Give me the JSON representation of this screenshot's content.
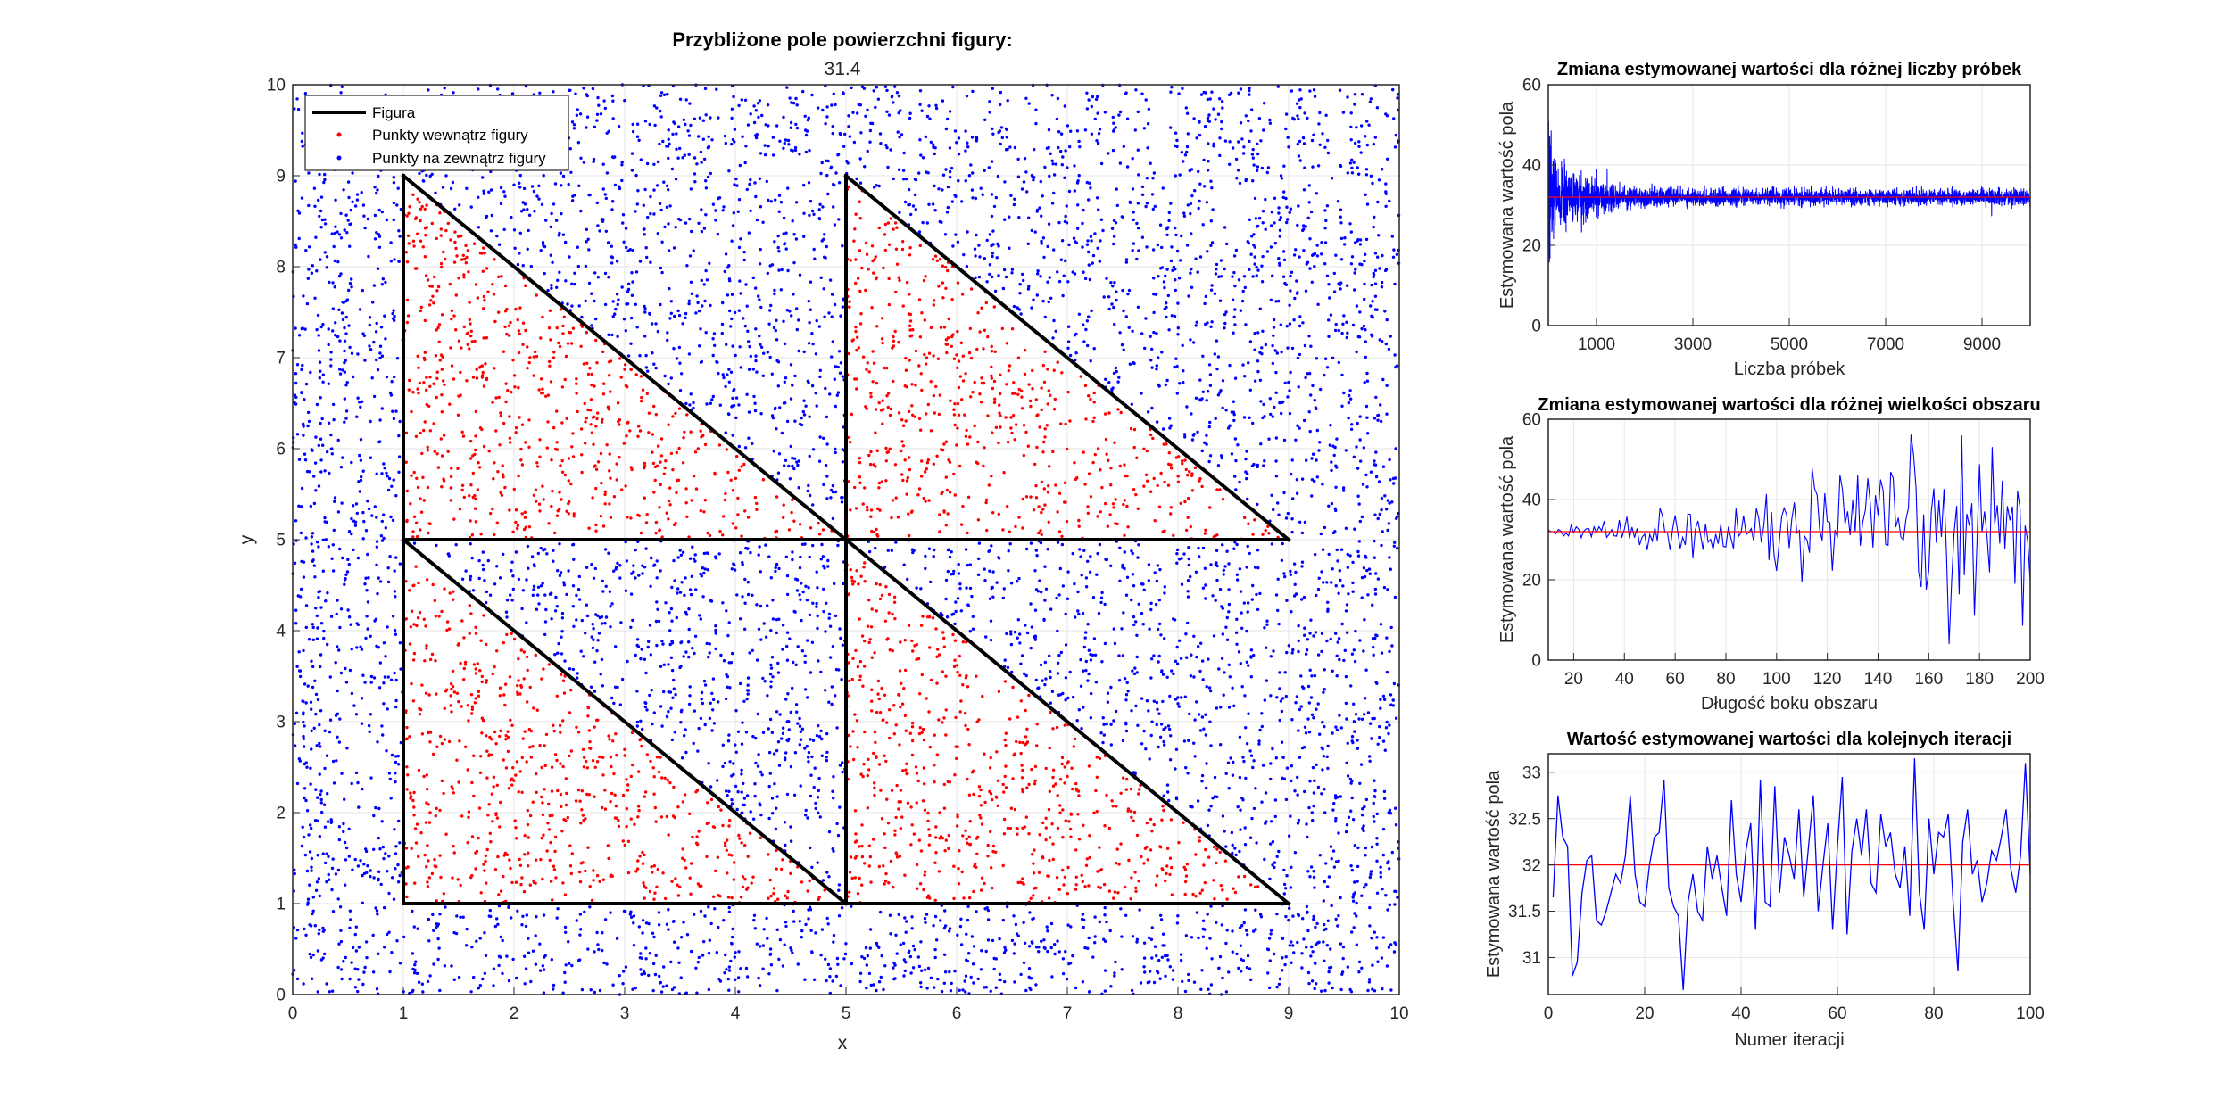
{
  "chart_data": [
    {
      "type": "scatter",
      "title": "Przybliżone pole powierzchni figury:",
      "subtitle": "31.4",
      "xlabel": "x",
      "ylabel": "y",
      "xlim": [
        0,
        10
      ],
      "ylim": [
        0,
        10
      ],
      "xticks": [
        0,
        1,
        2,
        3,
        4,
        5,
        6,
        7,
        8,
        9,
        10
      ],
      "yticks": [
        0,
        1,
        2,
        3,
        4,
        5,
        6,
        7,
        8,
        9,
        10
      ],
      "grid": true,
      "legend_position": "top-left",
      "legend": [
        {
          "label": "Figura",
          "color": "#000000",
          "marker": "line"
        },
        {
          "label": "Punkty wewnątrz figury",
          "color": "#ff0000",
          "marker": "dot"
        },
        {
          "label": "Punkty na zewnątrz figury",
          "color": "#0000ff",
          "marker": "dot"
        }
      ],
      "figure_segments": [
        [
          [
            1,
            1
          ],
          [
            1,
            9
          ]
        ],
        [
          [
            1,
            9
          ],
          [
            5,
            5
          ]
        ],
        [
          [
            1,
            5
          ],
          [
            9,
            5
          ]
        ],
        [
          [
            1,
            5
          ],
          [
            5,
            1
          ]
        ],
        [
          [
            1,
            1
          ],
          [
            9,
            1
          ]
        ],
        [
          [
            5,
            1
          ],
          [
            5,
            9
          ]
        ],
        [
          [
            5,
            9
          ],
          [
            9,
            5
          ]
        ],
        [
          [
            5,
            5
          ],
          [
            9,
            1
          ]
        ]
      ],
      "inside_region_triangles": [
        [
          [
            1,
            5
          ],
          [
            1,
            9
          ],
          [
            5,
            5
          ]
        ],
        [
          [
            5,
            5
          ],
          [
            5,
            9
          ],
          [
            9,
            5
          ]
        ],
        [
          [
            1,
            1
          ],
          [
            1,
            5
          ],
          [
            5,
            1
          ]
        ],
        [
          [
            5,
            1
          ],
          [
            5,
            5
          ],
          [
            9,
            1
          ]
        ]
      ],
      "point_count": 10000,
      "inside_color": "#ff0000",
      "outside_color": "#0000ff"
    },
    {
      "type": "line",
      "title": "Zmiana estymowanej wartości dla różnej liczby próbek",
      "xlabel": "Liczba próbek",
      "ylabel": "Estymowana wartość pola",
      "xlim": [
        0,
        10000
      ],
      "ylim": [
        0,
        60
      ],
      "xticks": [
        1000,
        3000,
        5000,
        7000,
        9000
      ],
      "yticks": [
        0,
        20,
        40,
        60
      ],
      "grid": true,
      "reference_value": 32,
      "reference_color": "#ff0000",
      "series_color": "#0000ff",
      "series_generation": {
        "type": "convergence",
        "n": 10000,
        "target": 32,
        "start_spread": 12
      }
    },
    {
      "type": "line",
      "title": "Zmiana estymowanej wartości dla różnej wielkości obszaru",
      "xlabel": "Długość boku obszaru",
      "ylabel": "Estymowana wartość pola",
      "xlim": [
        10,
        200
      ],
      "ylim": [
        0,
        60
      ],
      "xticks": [
        20,
        40,
        60,
        80,
        100,
        120,
        140,
        160,
        180,
        200
      ],
      "yticks": [
        0,
        20,
        40,
        60
      ],
      "grid": true,
      "reference_value": 32,
      "reference_color": "#ff0000",
      "series_color": "#0000ff",
      "series_generation": {
        "type": "growing-noise",
        "x_from": 10,
        "x_to": 200,
        "step": 1,
        "target": 32
      }
    },
    {
      "type": "line",
      "title": "Wartość estymowanej wartości dla kolejnych iteracji",
      "xlabel": "Numer iteracji",
      "ylabel": "Estymowana wartość pola",
      "xlim": [
        0,
        100
      ],
      "ylim": [
        30.6,
        33.2
      ],
      "xticks": [
        0,
        20,
        40,
        60,
        80,
        100
      ],
      "yticks": [
        31,
        31.5,
        32,
        32.5,
        33
      ],
      "grid": true,
      "reference_value": 32,
      "reference_color": "#ff0000",
      "series_color": "#0000ff",
      "x": [
        1,
        2,
        3,
        4,
        5,
        6,
        7,
        8,
        9,
        10,
        11,
        12,
        13,
        14,
        15,
        16,
        17,
        18,
        19,
        20,
        21,
        22,
        23,
        24,
        25,
        26,
        27,
        28,
        29,
        30,
        31,
        32,
        33,
        34,
        35,
        36,
        37,
        38,
        39,
        40,
        41,
        42,
        43,
        44,
        45,
        46,
        47,
        48,
        49,
        50,
        51,
        52,
        53,
        54,
        55,
        56,
        57,
        58,
        59,
        60,
        61,
        62,
        63,
        64,
        65,
        66,
        67,
        68,
        69,
        70,
        71,
        72,
        73,
        74,
        75,
        76,
        77,
        78,
        79,
        80,
        81,
        82,
        83,
        84,
        85,
        86,
        87,
        88,
        89,
        90,
        91,
        92,
        93,
        94,
        95,
        96,
        97,
        98,
        99,
        100
      ],
      "y": [
        31.65,
        32.75,
        32.3,
        32.2,
        30.8,
        30.95,
        31.7,
        32.05,
        32.1,
        31.4,
        31.35,
        31.5,
        31.7,
        31.9,
        31.8,
        32.1,
        32.75,
        31.9,
        31.6,
        31.55,
        32.0,
        32.3,
        32.35,
        32.92,
        31.75,
        31.55,
        31.45,
        30.65,
        31.6,
        31.9,
        31.5,
        31.4,
        32.2,
        31.85,
        32.1,
        31.75,
        31.45,
        32.7,
        31.9,
        31.6,
        32.15,
        32.45,
        31.3,
        32.92,
        31.6,
        31.55,
        32.85,
        31.7,
        32.3,
        32.1,
        31.85,
        32.6,
        31.65,
        32.2,
        32.75,
        31.5,
        32.0,
        32.45,
        31.3,
        32.2,
        32.95,
        31.25,
        32.15,
        32.5,
        32.1,
        32.6,
        31.8,
        31.7,
        32.55,
        32.2,
        32.35,
        31.9,
        31.75,
        32.2,
        31.45,
        33.15,
        31.7,
        31.3,
        32.5,
        31.9,
        32.35,
        32.3,
        32.55,
        31.6,
        30.85,
        32.25,
        32.6,
        31.9,
        32.05,
        31.6,
        31.8,
        32.15,
        32.05,
        32.3,
        32.6,
        31.95,
        31.7,
        32.1,
        33.1,
        31.9
      ]
    }
  ]
}
